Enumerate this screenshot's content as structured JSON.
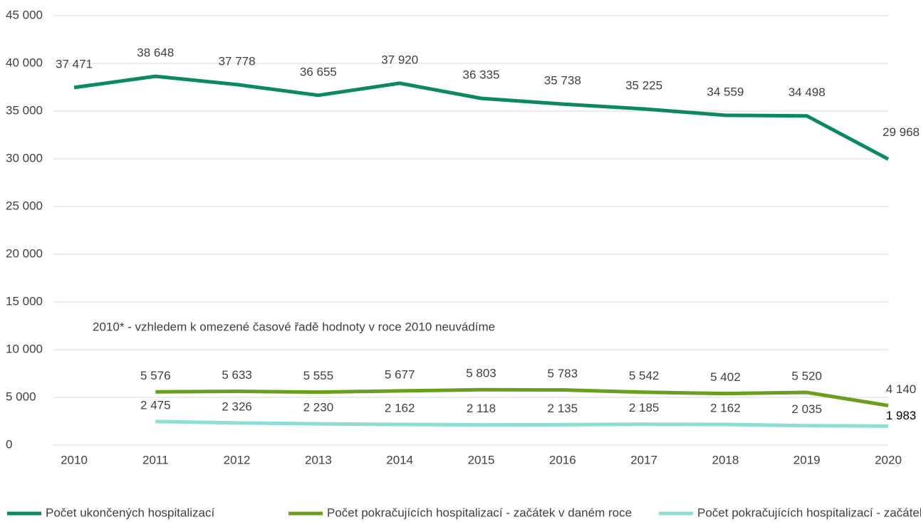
{
  "chart_data": {
    "type": "line",
    "categories": [
      "2010",
      "2011",
      "2012",
      "2013",
      "2014",
      "2015",
      "2016",
      "2017",
      "2018",
      "2019",
      "2020"
    ],
    "series": [
      {
        "name": "Počet ukončených hospitalizací",
        "color": "#0a8a5e",
        "values": [
          37471,
          38648,
          37778,
          36655,
          37920,
          36335,
          35738,
          35225,
          34559,
          34498,
          29968
        ],
        "value_labels": [
          "37 471",
          "38 648",
          "37 778",
          "36 655",
          "37 920",
          "36 335",
          "35 738",
          "35 225",
          "34 559",
          "34 498",
          "29 968"
        ]
      },
      {
        "name": "Počet pokračujících hospitalizací - začátek v daném roce",
        "color": "#6a9e1f",
        "values": [
          null,
          5576,
          5633,
          5555,
          5677,
          5803,
          5783,
          5542,
          5402,
          5520,
          4140
        ],
        "value_labels": [
          null,
          "5 576",
          "5 633",
          "5 555",
          "5 677",
          "5 803",
          "5 783",
          "5 542",
          "5 402",
          "5 520",
          "4 140"
        ]
      },
      {
        "name": "Počet pokračujících hospitalizací - začátek dříve",
        "color": "#8fded5",
        "values": [
          null,
          2475,
          2326,
          2230,
          2162,
          2118,
          2135,
          2185,
          2162,
          2035,
          1983
        ],
        "value_labels": [
          null,
          "2 475",
          "2 326",
          "2 230",
          "2 162",
          "2 118",
          "2 135",
          "2 185",
          "2 162",
          "2 035",
          "1 983"
        ]
      }
    ],
    "annotation": "2010* - vzhledem k omezené časové řadě hodnoty v roce 2010 neuvádíme",
    "ylim": [
      0,
      45000
    ],
    "yticks": [
      0,
      {
        "value": 5000,
        "label": "5 000"
      },
      {
        "value": 10000,
        "label": "10 000"
      },
      {
        "value": 15000,
        "label": "15 000"
      },
      {
        "value": 20000,
        "label": "20 000"
      },
      {
        "value": 25000,
        "label": "25 000"
      },
      {
        "value": 30000,
        "label": "30 000"
      },
      {
        "value": 35000,
        "label": "35 000"
      },
      {
        "value": 40000,
        "label": "40 000"
      },
      {
        "value": 45000,
        "label": "45 000"
      }
    ],
    "grid": true,
    "legend": "bottom"
  }
}
